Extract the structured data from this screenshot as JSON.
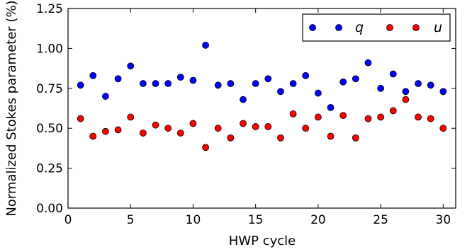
{
  "chart_data": {
    "type": "scatter",
    "xlabel": "HWP cycle",
    "ylabel": "Normalized Stokes parameter (%)",
    "xlim": [
      0,
      31
    ],
    "ylim": [
      0.0,
      1.25
    ],
    "x_ticks": [
      0,
      5,
      10,
      15,
      20,
      25,
      30
    ],
    "y_ticks": [
      0.0,
      0.25,
      0.5,
      0.75,
      1.0,
      1.25
    ],
    "x_tick_labels": [
      "0",
      "5",
      "10",
      "15",
      "20",
      "25",
      "30"
    ],
    "y_tick_labels": [
      "0.00",
      "0.25",
      "0.50",
      "0.75",
      "1.00",
      "1.25"
    ],
    "grid": false,
    "legend_position": "top-right",
    "series": [
      {
        "name": "q",
        "color": "#0000ff",
        "marker": "circle",
        "x": [
          1,
          2,
          3,
          4,
          5,
          6,
          7,
          8,
          9,
          10,
          11,
          12,
          13,
          14,
          15,
          16,
          17,
          18,
          19,
          20,
          21,
          22,
          23,
          24,
          25,
          26,
          27,
          28,
          29,
          30
        ],
        "y": [
          0.77,
          0.83,
          0.7,
          0.81,
          0.89,
          0.78,
          0.78,
          0.78,
          0.82,
          0.8,
          1.02,
          0.77,
          0.78,
          0.68,
          0.78,
          0.81,
          0.73,
          0.78,
          0.83,
          0.72,
          0.63,
          0.79,
          0.81,
          0.91,
          0.75,
          0.84,
          0.73,
          0.78,
          0.77,
          0.73
        ]
      },
      {
        "name": "u",
        "color": "#ff0000",
        "marker": "circle",
        "x": [
          1,
          2,
          3,
          4,
          5,
          6,
          7,
          8,
          9,
          10,
          11,
          12,
          13,
          14,
          15,
          16,
          17,
          18,
          19,
          20,
          21,
          22,
          23,
          24,
          25,
          26,
          27,
          28,
          29,
          30
        ],
        "y": [
          0.56,
          0.45,
          0.48,
          0.49,
          0.57,
          0.47,
          0.52,
          0.5,
          0.47,
          0.53,
          0.38,
          0.5,
          0.44,
          0.53,
          0.51,
          0.51,
          0.44,
          0.59,
          0.5,
          0.57,
          0.45,
          0.58,
          0.44,
          0.56,
          0.57,
          0.61,
          0.68,
          0.57,
          0.56,
          0.5
        ]
      }
    ]
  }
}
